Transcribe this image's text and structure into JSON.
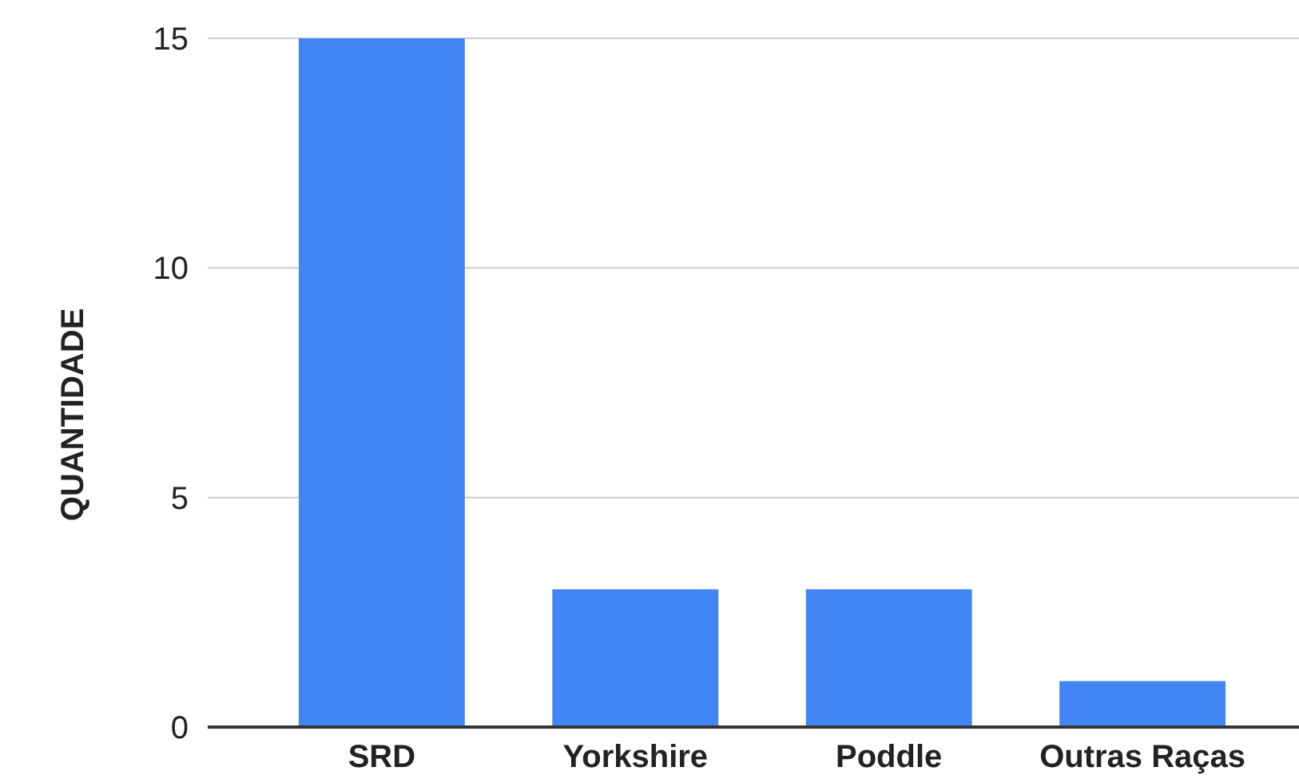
{
  "chart_data": {
    "type": "bar",
    "ylabel": "QUANTIDADE",
    "categories": [
      "SRD",
      "Yorkshire",
      "Poddle",
      "Outras Raças"
    ],
    "values": [
      15,
      3,
      3,
      1
    ],
    "color": "#4285f4",
    "ylim": [
      0,
      15
    ],
    "yticks": [
      0,
      5,
      10,
      15
    ],
    "grid": "y"
  }
}
